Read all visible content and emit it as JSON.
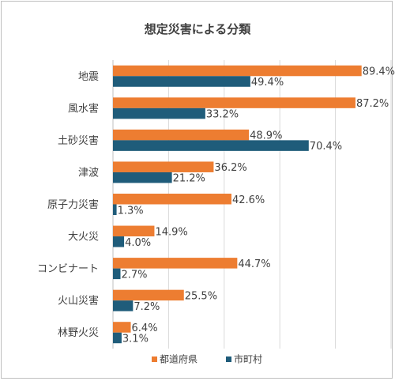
{
  "chart_data": {
    "type": "bar",
    "orientation": "horizontal",
    "title": "想定災害による分類",
    "xlabel": "",
    "ylabel": "",
    "xlim": [
      0,
      100
    ],
    "grid": true,
    "legend_position": "bottom",
    "categories": [
      "地震",
      "風水害",
      "土砂災害",
      "津波",
      "原子力災害",
      "大火災",
      "コンビナート",
      "火山災害",
      "林野火災"
    ],
    "series": [
      {
        "name": "都道府県",
        "color": "#ed7d31",
        "values": [
          89.4,
          87.2,
          48.9,
          36.2,
          42.6,
          14.9,
          44.7,
          25.5,
          6.4
        ],
        "labels": [
          "89.4%",
          "87.2%",
          "48.9%",
          "36.2%",
          "42.6%",
          "14.9%",
          "44.7%",
          "25.5%",
          "6.4%"
        ]
      },
      {
        "name": "市町村",
        "color": "#1f5c7a",
        "values": [
          49.4,
          33.2,
          70.4,
          21.2,
          1.3,
          4.0,
          2.7,
          7.2,
          3.1
        ],
        "labels": [
          "49.4%",
          "33.2%",
          "70.4%",
          "21.2%",
          "1.3%",
          "4.0%",
          "2.7%",
          "7.2%",
          "3.1%"
        ]
      }
    ]
  }
}
